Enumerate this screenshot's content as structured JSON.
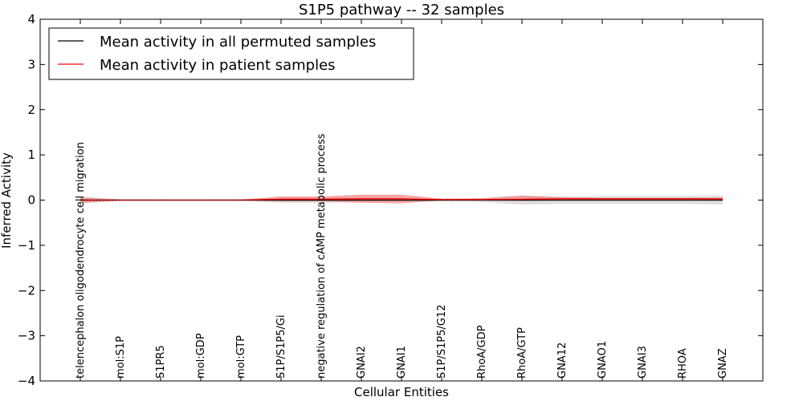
{
  "chart_data": {
    "type": "line",
    "title": "S1P5 pathway -- 32 samples",
    "xlabel": "Cellular Entities",
    "ylabel": "Inferred Activity",
    "ylim": [
      -4,
      4
    ],
    "yticks": [
      -4,
      -3,
      -2,
      -1,
      0,
      1,
      2,
      3,
      4
    ],
    "ytick_labels": [
      "−4",
      "−3",
      "−2",
      "−1",
      "0",
      "1",
      "2",
      "3",
      "4"
    ],
    "categories": [
      "telencephalon oligodendrocyte cell migration",
      "mol:S1P",
      "S1PR5",
      "mol:GDP",
      "mol:GTP",
      "S1P/S1P5/Gi",
      "negative regulation of cAMP metabolic process",
      "GNAI2",
      "GNAI1",
      "S1P/S1P5/G12",
      "RhoA/GDP",
      "RhoA/GTP",
      "GNA12",
      "GNAO1",
      "GNAI3",
      "RHOA",
      "GNAZ"
    ],
    "legend": {
      "position": "upper-left",
      "entries": [
        {
          "label": "Mean activity in all permuted samples",
          "color": "#000000"
        },
        {
          "label": "Mean activity in patient samples",
          "color": "#ff0000"
        }
      ]
    },
    "series": [
      {
        "name": "Mean activity in all permuted samples",
        "color": "#000000",
        "values": [
          0.0,
          0.0,
          0.0,
          0.0,
          0.0,
          0.0,
          0.0,
          0.0,
          0.0,
          0.0,
          0.0,
          0.0,
          0.0,
          0.0,
          0.0,
          0.0,
          0.0
        ],
        "band_lower": [
          -0.08,
          -0.02,
          -0.01,
          -0.01,
          -0.02,
          -0.06,
          -0.06,
          -0.04,
          -0.04,
          -0.03,
          -0.04,
          -0.1,
          -0.08,
          -0.08,
          -0.08,
          -0.08,
          -0.1
        ],
        "band_upper": [
          0.08,
          0.02,
          0.01,
          0.01,
          0.02,
          0.06,
          0.06,
          0.04,
          0.04,
          0.03,
          0.04,
          0.1,
          0.08,
          0.08,
          0.08,
          0.08,
          0.1
        ]
      },
      {
        "name": "Mean activity in patient samples",
        "color": "#ff0000",
        "values": [
          0.0,
          0.0,
          0.0,
          0.0,
          0.0,
          0.02,
          0.02,
          0.03,
          0.03,
          0.01,
          0.01,
          0.02,
          0.03,
          0.03,
          0.03,
          0.03,
          0.03
        ],
        "band_lower": [
          -0.06,
          -0.01,
          -0.01,
          -0.01,
          -0.01,
          -0.03,
          -0.03,
          -0.06,
          -0.07,
          -0.01,
          -0.01,
          -0.02,
          -0.01,
          -0.01,
          -0.01,
          -0.01,
          -0.01
        ],
        "band_upper": [
          0.06,
          0.01,
          0.01,
          0.01,
          0.01,
          0.08,
          0.08,
          0.12,
          0.12,
          0.03,
          0.04,
          0.1,
          0.06,
          0.05,
          0.05,
          0.05,
          0.05
        ]
      }
    ]
  }
}
